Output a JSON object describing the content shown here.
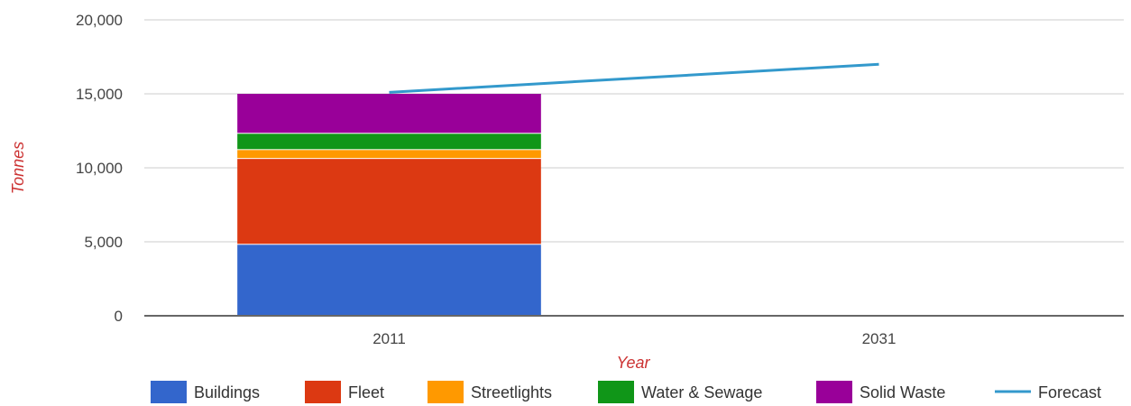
{
  "chart_data": {
    "type": "bar",
    "stacked": true,
    "categories": [
      "2011",
      "2031"
    ],
    "series": [
      {
        "name": "Buildings",
        "type": "bar",
        "color": "#3366cc",
        "values": [
          4800,
          null
        ]
      },
      {
        "name": "Fleet",
        "type": "bar",
        "color": "#dc3912",
        "values": [
          5800,
          null
        ]
      },
      {
        "name": "Streetlights",
        "type": "bar",
        "color": "#ff9900",
        "values": [
          600,
          null
        ]
      },
      {
        "name": "Water & Sewage",
        "type": "bar",
        "color": "#109618",
        "values": [
          1100,
          null
        ]
      },
      {
        "name": "Solid Waste",
        "type": "bar",
        "color": "#990099",
        "values": [
          2700,
          null
        ]
      },
      {
        "name": "Forecast",
        "type": "line",
        "color": "#3399cc",
        "values": [
          15100,
          17000
        ]
      }
    ],
    "title": "",
    "xlabel": "Year",
    "ylabel": "Tonnes",
    "ylim": [
      0,
      20000
    ],
    "yticks": [
      {
        "value": 0,
        "label": "0"
      },
      {
        "value": 5000,
        "label": "5,000"
      },
      {
        "value": 10000,
        "label": "10,000"
      },
      {
        "value": 15000,
        "label": "15,000"
      },
      {
        "value": 20000,
        "label": "20,000"
      }
    ],
    "grid": true,
    "legend_position": "bottom"
  }
}
